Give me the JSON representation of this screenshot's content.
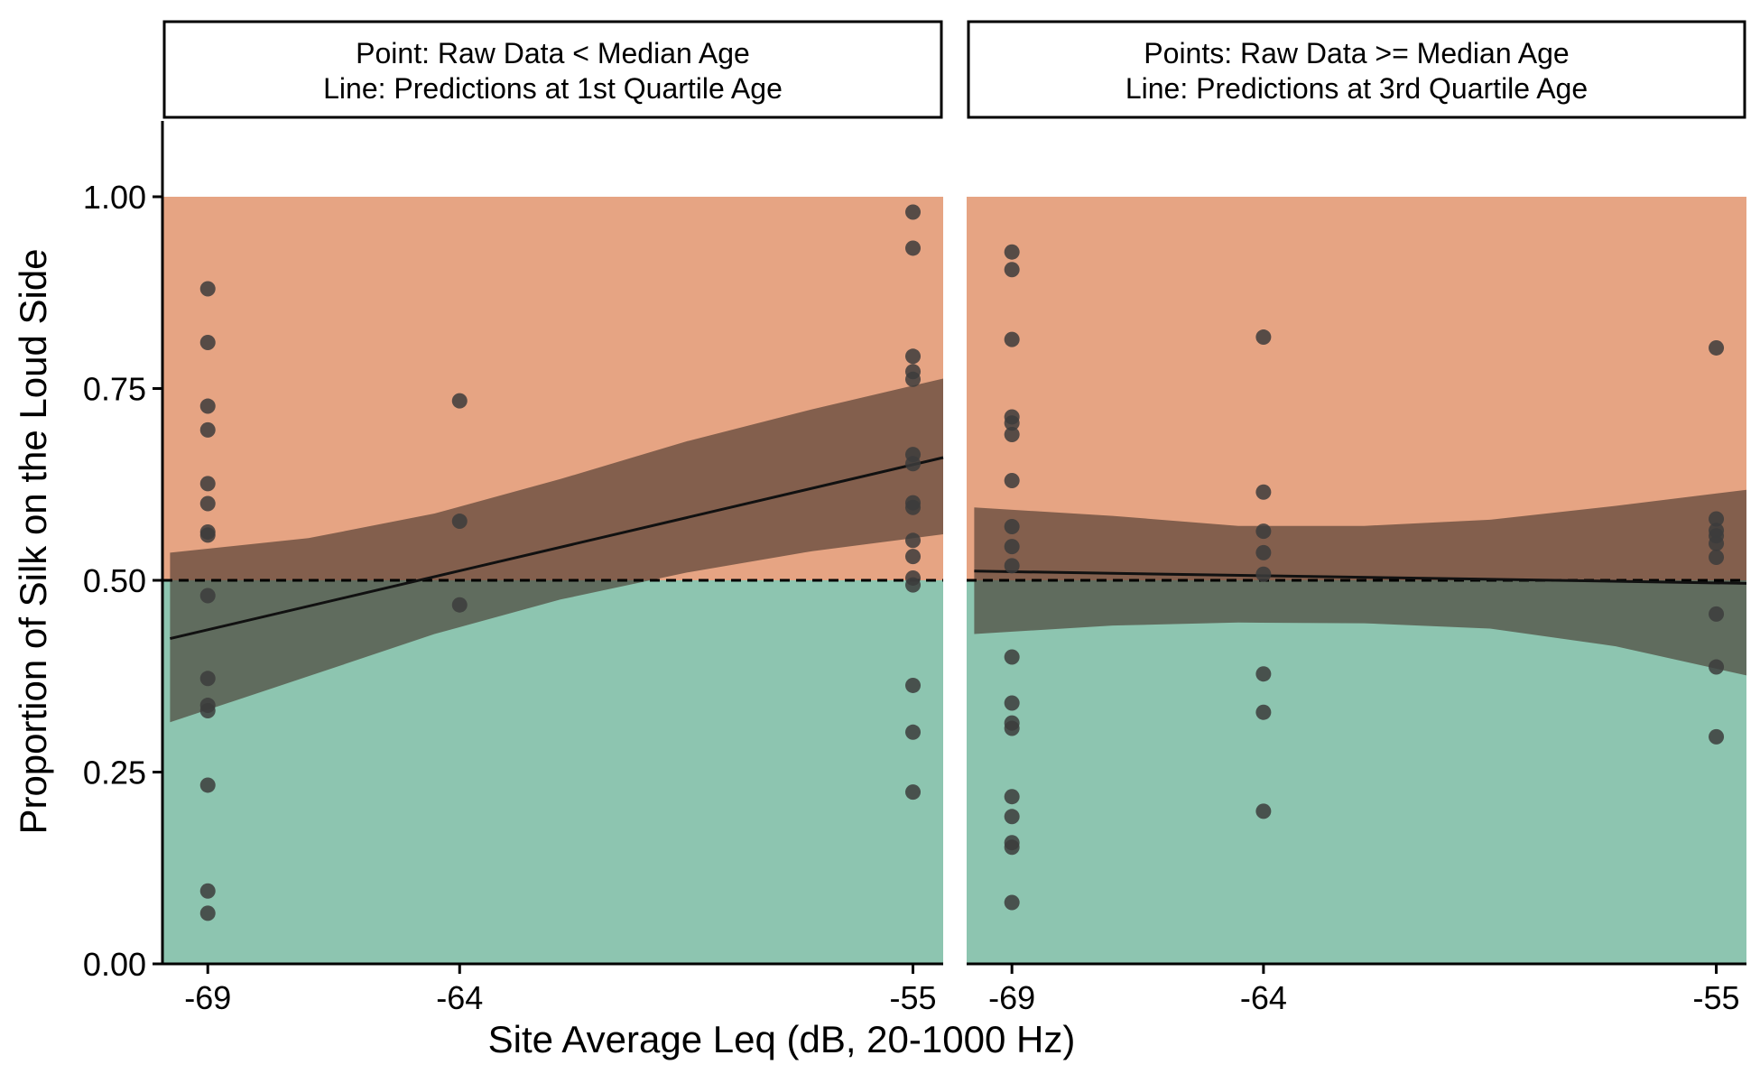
{
  "chart_data": {
    "type": "scatter",
    "layout": "faceted-two-panel",
    "ylabel": "Proportion of Silk on the Loud Side",
    "xlabel": "Site Average Leq (dB, 20-1000 Hz)",
    "ylim": [
      0,
      1
    ],
    "xlim": [
      -69.9,
      -54.4
    ],
    "y_ticks": [
      0,
      0.25,
      0.5,
      0.75,
      1
    ],
    "y_tick_labels": [
      "0.00",
      "0.25",
      "0.50",
      "0.75",
      "1.00"
    ],
    "x_ticks": [
      -69,
      -64,
      -55
    ],
    "x_tick_labels": [
      "-69",
      "-64",
      "-55"
    ],
    "reference_line": {
      "y": 0.5,
      "style": "dashed"
    },
    "background_bands": [
      {
        "from": 0.5,
        "to": 1.0,
        "color": "#e6a483"
      },
      {
        "from": 0.0,
        "to": 0.5,
        "color": "#8dc5b0"
      }
    ],
    "colors": {
      "points": "#3c3c3c",
      "ribbon": "#46352c",
      "line": "#111111",
      "axis": "#000000"
    },
    "grid": false,
    "panels": [
      {
        "strip_lines": [
          "Point: Raw Data < Median Age",
          "Line: Predictions at 1st Quartile Age"
        ],
        "points": [
          {
            "x": -69,
            "y": 0.88
          },
          {
            "x": -69,
            "y": 0.81
          },
          {
            "x": -69,
            "y": 0.727
          },
          {
            "x": -69,
            "y": 0.696
          },
          {
            "x": -69,
            "y": 0.626
          },
          {
            "x": -69,
            "y": 0.6
          },
          {
            "x": -69,
            "y": 0.563
          },
          {
            "x": -69,
            "y": 0.559
          },
          {
            "x": -69,
            "y": 0.48
          },
          {
            "x": -69,
            "y": 0.372
          },
          {
            "x": -69,
            "y": 0.337
          },
          {
            "x": -69,
            "y": 0.33
          },
          {
            "x": -69,
            "y": 0.233
          },
          {
            "x": -69,
            "y": 0.095
          },
          {
            "x": -69,
            "y": 0.066
          },
          {
            "x": -64,
            "y": 0.734
          },
          {
            "x": -64,
            "y": 0.577
          },
          {
            "x": -64,
            "y": 0.468
          },
          {
            "x": -55,
            "y": 0.98
          },
          {
            "x": -55,
            "y": 0.933
          },
          {
            "x": -55,
            "y": 0.792
          },
          {
            "x": -55,
            "y": 0.772
          },
          {
            "x": -55,
            "y": 0.762
          },
          {
            "x": -55,
            "y": 0.664
          },
          {
            "x": -55,
            "y": 0.652
          },
          {
            "x": -55,
            "y": 0.601
          },
          {
            "x": -55,
            "y": 0.595
          },
          {
            "x": -55,
            "y": 0.552
          },
          {
            "x": -55,
            "y": 0.531
          },
          {
            "x": -55,
            "y": 0.503
          },
          {
            "x": -55,
            "y": 0.494
          },
          {
            "x": -55,
            "y": 0.363
          },
          {
            "x": -55,
            "y": 0.302
          },
          {
            "x": -55,
            "y": 0.224
          }
        ],
        "line": [
          {
            "x": -69.75,
            "y": 0.424
          },
          {
            "x": -54.4,
            "y": 0.66
          }
        ],
        "ribbon": [
          {
            "x": -69.75,
            "lower": 0.315,
            "upper": 0.536
          },
          {
            "x": -67,
            "lower": 0.375,
            "upper": 0.555
          },
          {
            "x": -64.5,
            "lower": 0.43,
            "upper": 0.587
          },
          {
            "x": -62,
            "lower": 0.475,
            "upper": 0.632
          },
          {
            "x": -59.5,
            "lower": 0.51,
            "upper": 0.681
          },
          {
            "x": -57,
            "lower": 0.538,
            "upper": 0.723
          },
          {
            "x": -54.4,
            "lower": 0.56,
            "upper": 0.763
          }
        ]
      },
      {
        "strip_lines": [
          "Points: Raw Data >= Median Age",
          "Line: Predictions at 3rd Quartile Age"
        ],
        "points": [
          {
            "x": -69,
            "y": 0.928
          },
          {
            "x": -69,
            "y": 0.905
          },
          {
            "x": -69,
            "y": 0.814
          },
          {
            "x": -69,
            "y": 0.713
          },
          {
            "x": -69,
            "y": 0.705
          },
          {
            "x": -69,
            "y": 0.69
          },
          {
            "x": -69,
            "y": 0.63
          },
          {
            "x": -69,
            "y": 0.57
          },
          {
            "x": -69,
            "y": 0.544
          },
          {
            "x": -69,
            "y": 0.519
          },
          {
            "x": -69,
            "y": 0.4
          },
          {
            "x": -69,
            "y": 0.34
          },
          {
            "x": -69,
            "y": 0.314
          },
          {
            "x": -69,
            "y": 0.307
          },
          {
            "x": -69,
            "y": 0.218
          },
          {
            "x": -69,
            "y": 0.192
          },
          {
            "x": -69,
            "y": 0.158
          },
          {
            "x": -69,
            "y": 0.152
          },
          {
            "x": -69,
            "y": 0.08
          },
          {
            "x": -64,
            "y": 0.817
          },
          {
            "x": -64,
            "y": 0.615
          },
          {
            "x": -64,
            "y": 0.564
          },
          {
            "x": -64,
            "y": 0.536
          },
          {
            "x": -64,
            "y": 0.508
          },
          {
            "x": -64,
            "y": 0.378
          },
          {
            "x": -64,
            "y": 0.328
          },
          {
            "x": -64,
            "y": 0.199
          },
          {
            "x": -55,
            "y": 0.803
          },
          {
            "x": -55,
            "y": 0.58
          },
          {
            "x": -55,
            "y": 0.565
          },
          {
            "x": -55,
            "y": 0.558
          },
          {
            "x": -55,
            "y": 0.548
          },
          {
            "x": -55,
            "y": 0.53
          },
          {
            "x": -55,
            "y": 0.456
          },
          {
            "x": -55,
            "y": 0.387
          },
          {
            "x": -55,
            "y": 0.296
          }
        ],
        "line": [
          {
            "x": -69.75,
            "y": 0.512
          },
          {
            "x": -54.4,
            "y": 0.496
          }
        ],
        "ribbon": [
          {
            "x": -69.75,
            "lower": 0.43,
            "upper": 0.595
          },
          {
            "x": -67,
            "lower": 0.441,
            "upper": 0.584
          },
          {
            "x": -64.5,
            "lower": 0.445,
            "upper": 0.571
          },
          {
            "x": -62,
            "lower": 0.444,
            "upper": 0.571
          },
          {
            "x": -59.5,
            "lower": 0.437,
            "upper": 0.579
          },
          {
            "x": -57,
            "lower": 0.414,
            "upper": 0.597
          },
          {
            "x": -54.4,
            "lower": 0.376,
            "upper": 0.618
          }
        ]
      }
    ]
  }
}
